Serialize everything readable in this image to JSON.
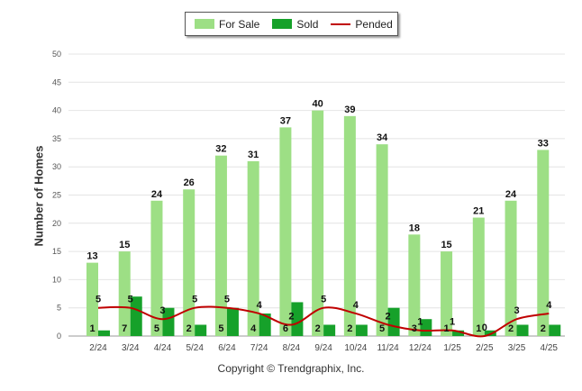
{
  "legend": [
    {
      "name": "For Sale",
      "color": "#9ddf85",
      "kind": "bar"
    },
    {
      "name": "Sold",
      "color": "#16a12a",
      "kind": "bar"
    },
    {
      "name": "Pended",
      "color": "#c00000",
      "kind": "line"
    }
  ],
  "copyright": "Copyright © Trendgraphix, Inc.",
  "chart_data": {
    "type": "bar",
    "ylabel": "Number of Homes",
    "xlabel": "",
    "ylim": [
      0,
      50
    ],
    "yticks": [
      0,
      5,
      10,
      15,
      20,
      25,
      30,
      35,
      40,
      45,
      50
    ],
    "grid": true,
    "legend_position": "top-center",
    "categories": [
      "2/24",
      "3/24",
      "4/24",
      "5/24",
      "6/24",
      "7/24",
      "8/24",
      "9/24",
      "10/24",
      "11/24",
      "12/24",
      "1/25",
      "2/25",
      "3/25",
      "4/25"
    ],
    "series": [
      {
        "name": "For Sale",
        "type": "bar",
        "color": "#9ddf85",
        "values": [
          13,
          15,
          24,
          26,
          32,
          31,
          37,
          40,
          39,
          34,
          18,
          15,
          21,
          24,
          33
        ]
      },
      {
        "name": "Sold",
        "type": "bar",
        "color": "#16a12a",
        "values": [
          1,
          7,
          5,
          2,
          5,
          4,
          6,
          2,
          2,
          5,
          3,
          1,
          1,
          2,
          2
        ]
      },
      {
        "name": "Pended",
        "type": "line",
        "color": "#c00000",
        "values": [
          5,
          5,
          3,
          5,
          5,
          4,
          2,
          5,
          4,
          2,
          1,
          1,
          0,
          3,
          4
        ]
      }
    ]
  }
}
